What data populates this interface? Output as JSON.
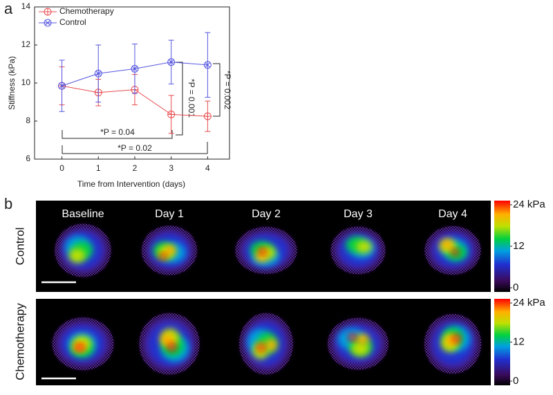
{
  "chart_data": {
    "type": "line",
    "panel_label": "a",
    "x_label": "Time from Intervention (days)",
    "y_label": "Stiffness (kPa)",
    "x": [
      0,
      1,
      2,
      3,
      4
    ],
    "series": [
      {
        "name": "Chemotherapy",
        "color": "#e8494c",
        "marker": "circle-plus",
        "values": [
          9.85,
          9.5,
          9.65,
          8.35,
          8.25
        ],
        "errors": [
          1.0,
          0.7,
          0.8,
          1.0,
          0.8
        ]
      },
      {
        "name": "Control",
        "color": "#5555e0",
        "marker": "circle-x",
        "values": [
          9.85,
          10.5,
          10.75,
          11.1,
          10.95
        ],
        "errors": [
          1.35,
          1.5,
          1.3,
          1.15,
          1.7
        ]
      }
    ],
    "xlim": [
      -0.75,
      4.6
    ],
    "ylim": [
      6,
      14
    ],
    "xticks": [
      0,
      1,
      2,
      3,
      4
    ],
    "yticks": [
      6,
      8,
      10,
      12,
      14
    ],
    "annotations": [
      "*P = 0.04",
      "*P = 0.02",
      "*P = 0.001",
      "*P = 0.002"
    ],
    "legend": "upper left"
  },
  "elastograms": {
    "panel_label": "b",
    "columns": [
      "Baseline",
      "Day 1",
      "Day 2",
      "Day 3",
      "Day 4"
    ],
    "rows": [
      "Control",
      "Chemotherapy"
    ],
    "colorbar_lim": [
      0,
      24
    ],
    "colorbar_ticks": [
      {
        "value": 24,
        "label": "24 kPa"
      },
      12,
      0
    ]
  }
}
